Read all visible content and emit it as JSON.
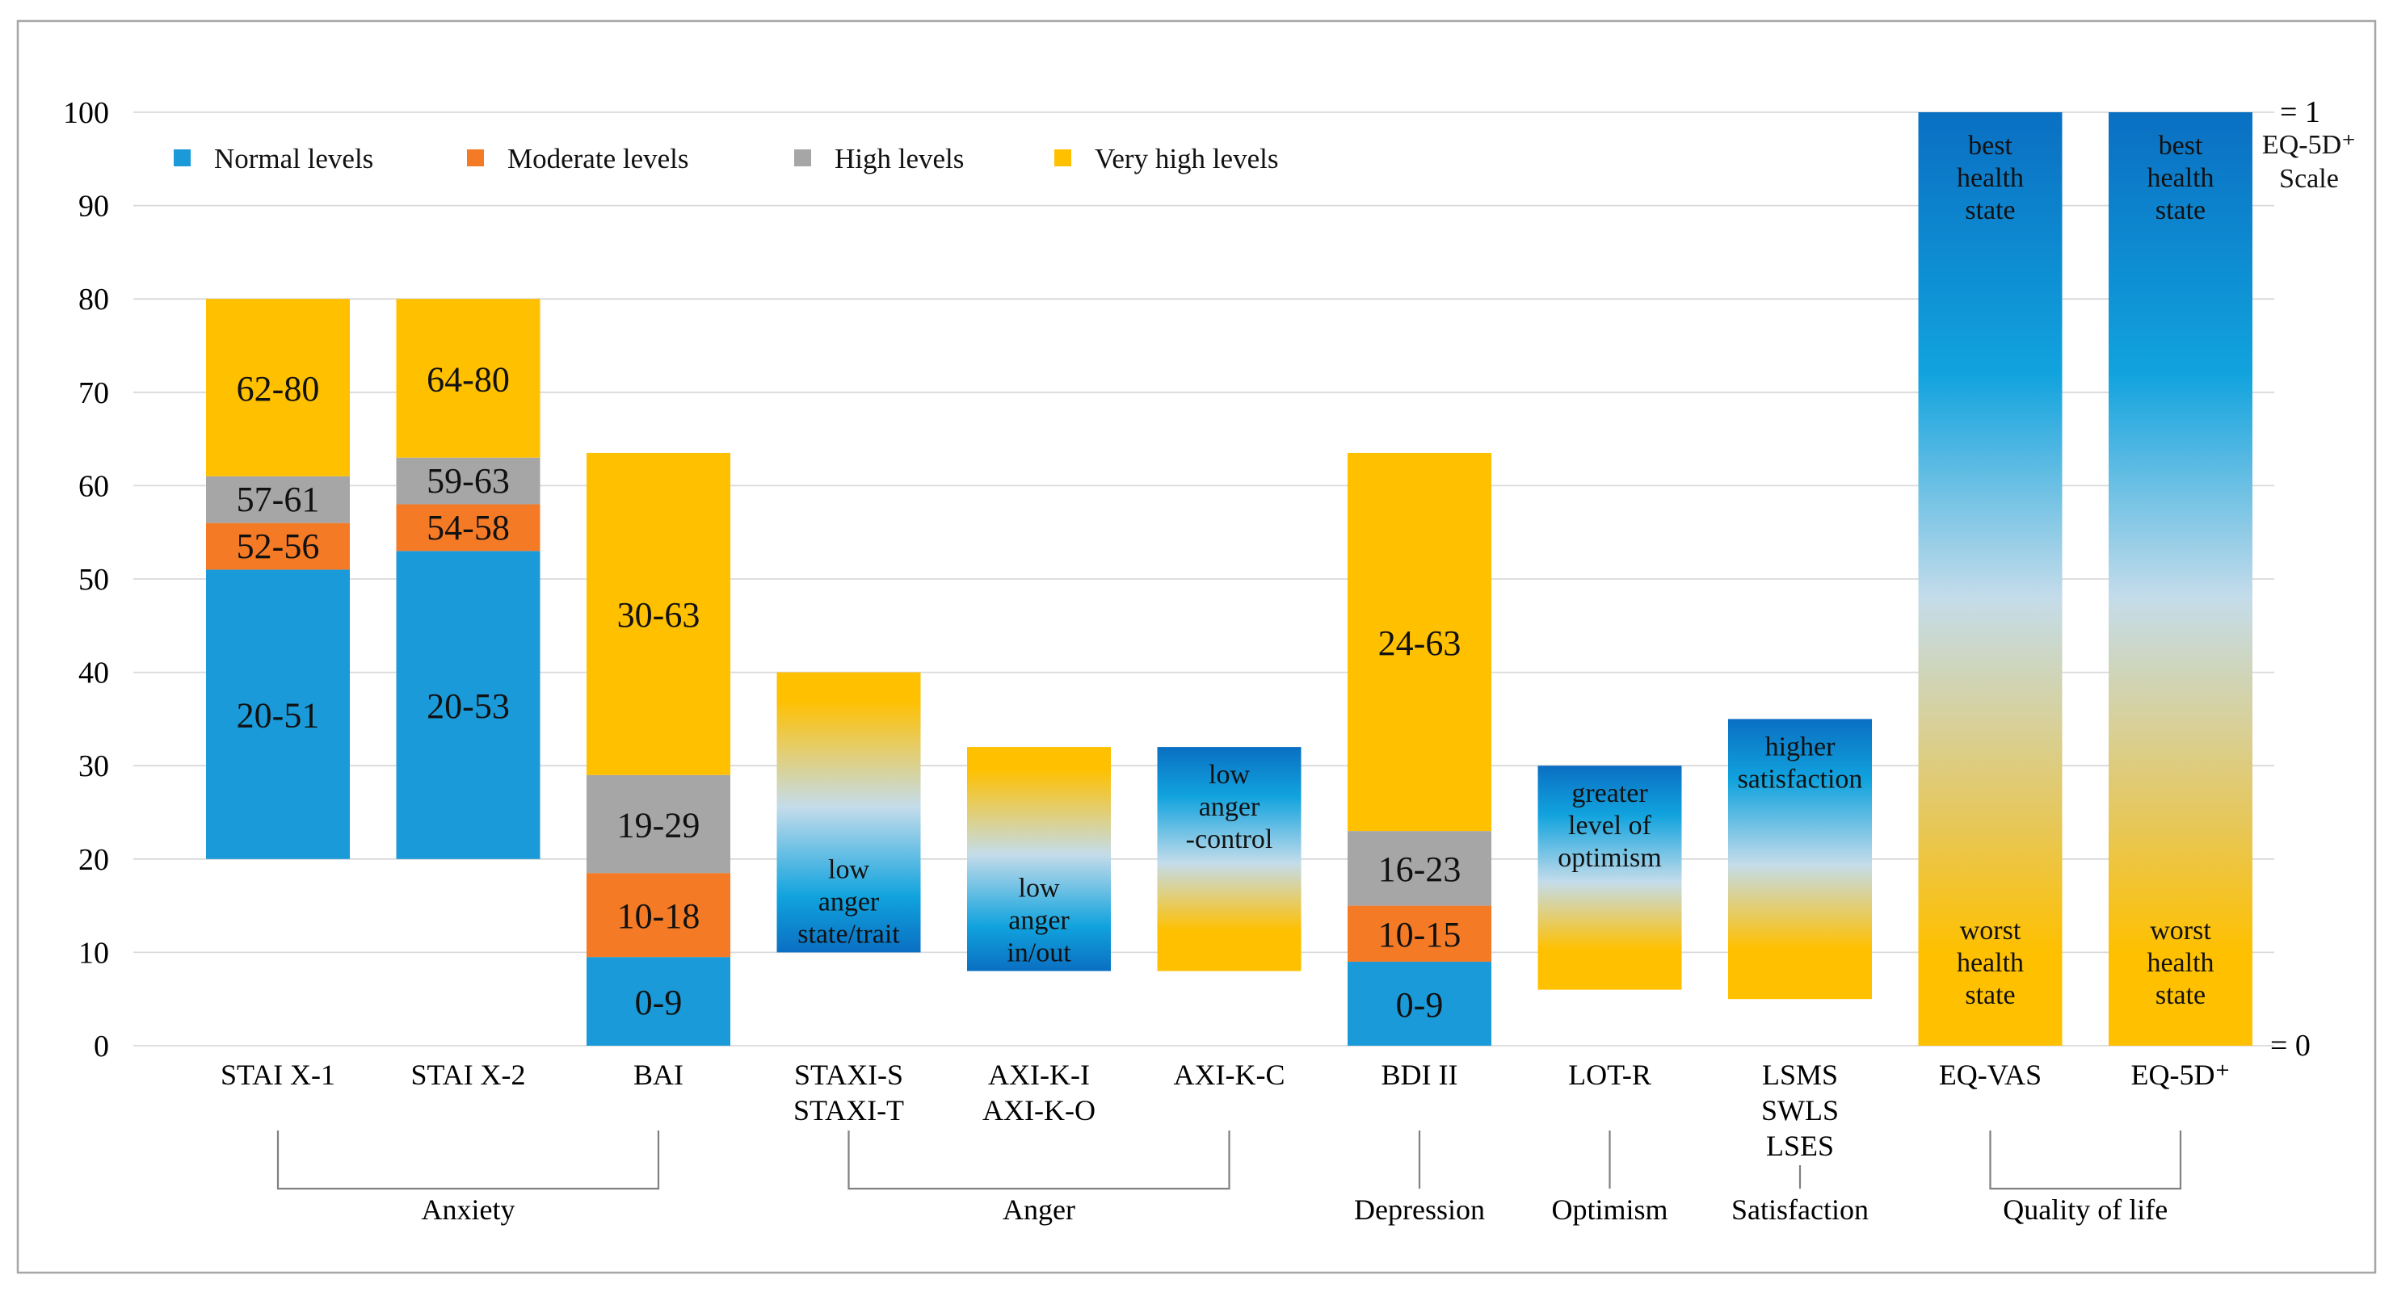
{
  "chart_data": {
    "type": "bar",
    "stacked": true,
    "ylim": [
      0,
      100
    ],
    "yticks": [
      0,
      10,
      20,
      30,
      40,
      50,
      60,
      70,
      80,
      90,
      100
    ],
    "grid": true,
    "legend": {
      "position": "top-left",
      "entries": [
        {
          "name": "Normal levels",
          "color": "#1a9ad8"
        },
        {
          "name": "Moderate levels",
          "color": "#f47a26"
        },
        {
          "name": "High levels",
          "color": "#a6a6a6"
        },
        {
          "name": "Very high levels",
          "color": "#ffc000"
        }
      ]
    },
    "colors": {
      "normal": "#1a9ad8",
      "moderate": "#f47a26",
      "high": "#a6a6a6",
      "very_high": "#ffc000",
      "grad_blue_dark": "#0a6fc2",
      "grad_blue": "#11a3de",
      "grad_light": "#c4dcea",
      "grad_yellow": "#ffc000"
    },
    "right_axis": {
      "top_label": "= 1",
      "title_lines": [
        "EQ-5D⁺",
        "Scale"
      ],
      "bottom_label": "= 0"
    },
    "bars": [
      {
        "category": [
          "STAI X-1"
        ],
        "kind": "stacked",
        "segments": [
          {
            "level": "normal",
            "from": 20,
            "to": 51,
            "label": "20-51"
          },
          {
            "level": "moderate",
            "from": 51,
            "to": 56,
            "label": "52-56"
          },
          {
            "level": "high",
            "from": 56,
            "to": 61,
            "label": "57-61"
          },
          {
            "level": "very_high",
            "from": 61,
            "to": 80,
            "label": "62-80"
          }
        ]
      },
      {
        "category": [
          "STAI X-2"
        ],
        "kind": "stacked",
        "segments": [
          {
            "level": "normal",
            "from": 20,
            "to": 53,
            "label": "20-53"
          },
          {
            "level": "moderate",
            "from": 53,
            "to": 58,
            "label": "54-58"
          },
          {
            "level": "high",
            "from": 58,
            "to": 63,
            "label": "59-63"
          },
          {
            "level": "very_high",
            "from": 63,
            "to": 80,
            "label": "64-80"
          }
        ]
      },
      {
        "category": [
          "BAI"
        ],
        "kind": "stacked",
        "segments": [
          {
            "level": "normal",
            "from": 0,
            "to": 9.5,
            "label": "0-9"
          },
          {
            "level": "moderate",
            "from": 9.5,
            "to": 18.5,
            "label": "10-18"
          },
          {
            "level": "high",
            "from": 18.5,
            "to": 29,
            "label": "19-29"
          },
          {
            "level": "very_high",
            "from": 29,
            "to": 63.5,
            "label": "30-63"
          }
        ]
      },
      {
        "category": [
          "STAXI-S",
          "STAXI-T"
        ],
        "kind": "gradient",
        "direction": "blue-bottom",
        "from": 10,
        "to": 40,
        "label_lines": [
          "low",
          "anger",
          "state/trait"
        ]
      },
      {
        "category": [
          "AXI-K-I",
          "AXI-K-O"
        ],
        "kind": "gradient",
        "direction": "blue-bottom",
        "from": 8,
        "to": 32,
        "label_lines": [
          "low",
          "anger",
          "in/out"
        ]
      },
      {
        "category": [
          "AXI-K-C"
        ],
        "kind": "gradient",
        "direction": "blue-top",
        "from": 8,
        "to": 32,
        "label_lines": [
          "low",
          "anger",
          "-control"
        ]
      },
      {
        "category": [
          "BDI II"
        ],
        "kind": "stacked",
        "segments": [
          {
            "level": "normal",
            "from": 0,
            "to": 9,
            "label": "0-9"
          },
          {
            "level": "moderate",
            "from": 9,
            "to": 15,
            "label": "10-15"
          },
          {
            "level": "high",
            "from": 15,
            "to": 23,
            "label": "16-23"
          },
          {
            "level": "very_high",
            "from": 23,
            "to": 63.5,
            "label": "24-63"
          }
        ]
      },
      {
        "category": [
          "LOT-R"
        ],
        "kind": "gradient",
        "direction": "blue-top",
        "from": 6,
        "to": 30,
        "label_lines": [
          "greater",
          "level of",
          "optimism"
        ]
      },
      {
        "category": [
          "LSMS",
          "SWLS",
          "LSES"
        ],
        "kind": "gradient",
        "direction": "blue-top",
        "from": 5,
        "to": 35,
        "label_lines": [
          "higher",
          "satisfaction"
        ]
      },
      {
        "category": [
          "EQ-VAS"
        ],
        "kind": "gradient-full",
        "direction": "blue-top",
        "from": 0,
        "to": 100,
        "top_label_lines": [
          "best",
          "health",
          "state"
        ],
        "bottom_label_lines": [
          "worst",
          "health",
          "state"
        ]
      },
      {
        "category": [
          "EQ-5D⁺"
        ],
        "kind": "gradient-full",
        "direction": "blue-top",
        "from": 0,
        "to": 100,
        "top_label_lines": [
          "best",
          "health",
          "state"
        ],
        "bottom_label_lines": [
          "worst",
          "health",
          "state"
        ]
      }
    ],
    "groups": [
      {
        "label": "Anxiety",
        "from_bar": 0,
        "to_bar": 2
      },
      {
        "label": "Anger",
        "from_bar": 3,
        "to_bar": 5
      },
      {
        "label": "Depression",
        "from_bar": 6,
        "to_bar": 6
      },
      {
        "label": "Optimism",
        "from_bar": 7,
        "to_bar": 7
      },
      {
        "label": "Satisfaction",
        "from_bar": 8,
        "to_bar": 8
      },
      {
        "label": "Quality of life",
        "from_bar": 9,
        "to_bar": 10
      }
    ]
  }
}
